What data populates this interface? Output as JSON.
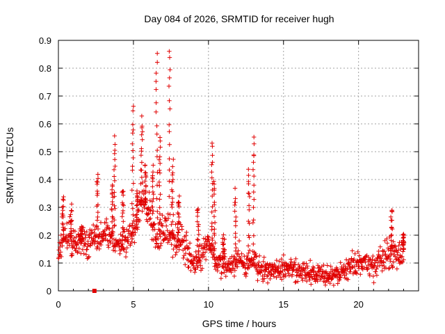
{
  "chart_data": {
    "type": "scatter",
    "title": "Day 084 of 2026, SRMTID for receiver hugh",
    "xlabel": "GPS time / hours",
    "ylabel": "SRMTID / TECUs",
    "xlim": [
      0,
      24
    ],
    "ylim": [
      0,
      0.9
    ],
    "xticks": [
      {
        "value": 0,
        "label": "0"
      },
      {
        "value": 5,
        "label": "5"
      },
      {
        "value": 10,
        "label": "10"
      },
      {
        "value": 15,
        "label": "15"
      },
      {
        "value": 20,
        "label": "20"
      }
    ],
    "yticks": [
      {
        "value": 0,
        "label": "0"
      },
      {
        "value": 0.1,
        "label": "0.1"
      },
      {
        "value": 0.2,
        "label": "0.2"
      },
      {
        "value": 0.3,
        "label": "0.3"
      },
      {
        "value": 0.4,
        "label": "0.4"
      },
      {
        "value": 0.5,
        "label": "0.5"
      },
      {
        "value": 0.6,
        "label": "0.6"
      },
      {
        "value": 0.7,
        "label": "0.7"
      },
      {
        "value": 0.8,
        "label": "0.8"
      },
      {
        "value": 0.9,
        "label": "0.9"
      }
    ],
    "grid": true,
    "marker": "plus",
    "marker_color": "#e00000",
    "special_marker": {
      "x": 2.4,
      "y": 0.0,
      "shape": "square",
      "color": "#e00000"
    },
    "profile": {
      "x": [
        0,
        0.5,
        1.0,
        1.5,
        2.0,
        2.5,
        3.0,
        3.5,
        4.0,
        4.5,
        5.0,
        5.5,
        6.0,
        6.5,
        7.0,
        7.5,
        8.0,
        8.5,
        9.0,
        9.5,
        10.0,
        10.5,
        11.0,
        11.5,
        12.0,
        12.5,
        13.0,
        13.5,
        14.0,
        15.0,
        16.0,
        17.0,
        18.0,
        19.0,
        20.0,
        20.5,
        21.0,
        21.5,
        22.0,
        22.5,
        23.0
      ],
      "y": [
        0.15,
        0.2,
        0.17,
        0.17,
        0.18,
        0.2,
        0.2,
        0.2,
        0.16,
        0.17,
        0.2,
        0.33,
        0.28,
        0.2,
        0.22,
        0.2,
        0.18,
        0.15,
        0.1,
        0.12,
        0.18,
        0.1,
        0.1,
        0.09,
        0.12,
        0.08,
        0.12,
        0.08,
        0.07,
        0.08,
        0.07,
        0.06,
        0.06,
        0.07,
        0.1,
        0.11,
        0.08,
        0.12,
        0.13,
        0.13,
        0.14
      ]
    },
    "peaks": [
      {
        "x": 0.3,
        "y": 0.33,
        "width": 0.12
      },
      {
        "x": 0.85,
        "y": 0.3,
        "width": 0.1
      },
      {
        "x": 1.5,
        "y": 0.23,
        "width": 0.2
      },
      {
        "x": 2.6,
        "y": 0.42,
        "width": 0.12
      },
      {
        "x": 3.6,
        "y": 0.39,
        "width": 0.1
      },
      {
        "x": 3.75,
        "y": 0.56,
        "width": 0.1
      },
      {
        "x": 4.3,
        "y": 0.37,
        "width": 0.12
      },
      {
        "x": 4.95,
        "y": 0.66,
        "width": 0.1
      },
      {
        "x": 5.25,
        "y": 0.36,
        "width": 0.1
      },
      {
        "x": 5.55,
        "y": 0.62,
        "width": 0.14
      },
      {
        "x": 5.8,
        "y": 0.45,
        "width": 0.1
      },
      {
        "x": 6.3,
        "y": 0.44,
        "width": 0.1
      },
      {
        "x": 6.55,
        "y": 0.86,
        "width": 0.1
      },
      {
        "x": 6.75,
        "y": 0.55,
        "width": 0.1
      },
      {
        "x": 7.4,
        "y": 0.87,
        "width": 0.08
      },
      {
        "x": 7.6,
        "y": 0.46,
        "width": 0.12
      },
      {
        "x": 8.0,
        "y": 0.34,
        "width": 0.12
      },
      {
        "x": 9.3,
        "y": 0.31,
        "width": 0.12
      },
      {
        "x": 10.25,
        "y": 0.54,
        "width": 0.1
      },
      {
        "x": 10.4,
        "y": 0.4,
        "width": 0.1
      },
      {
        "x": 11.0,
        "y": 0.2,
        "width": 0.15
      },
      {
        "x": 11.8,
        "y": 0.36,
        "width": 0.1
      },
      {
        "x": 12.7,
        "y": 0.44,
        "width": 0.1
      },
      {
        "x": 13.0,
        "y": 0.55,
        "width": 0.1
      },
      {
        "x": 22.2,
        "y": 0.29,
        "width": 0.1
      },
      {
        "x": 23.0,
        "y": 0.21,
        "width": 0.1
      }
    ]
  }
}
